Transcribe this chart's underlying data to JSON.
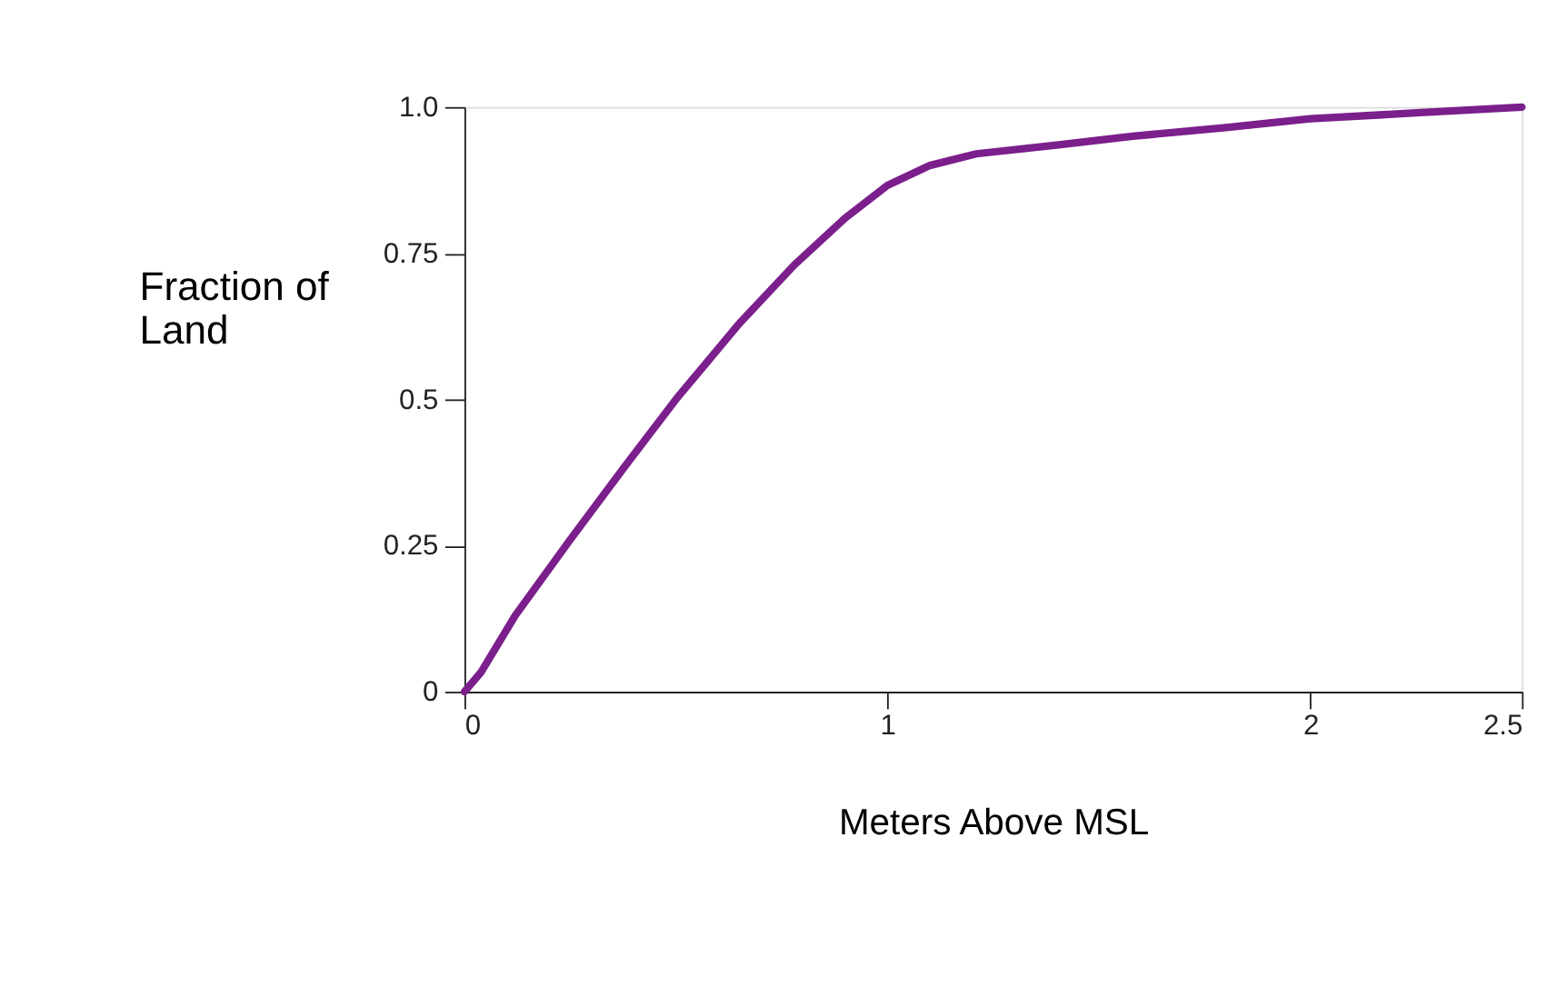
{
  "chart_data": {
    "type": "line",
    "xlabel": "Meters Above MSL",
    "ylabel": "Fraction of Land",
    "x": [
      0,
      0.04,
      0.12,
      0.25,
      0.38,
      0.5,
      0.65,
      0.78,
      0.9,
      1.0,
      1.1,
      1.21,
      1.4,
      1.58,
      1.8,
      2.0,
      2.25,
      2.5
    ],
    "series": [
      {
        "color": "#7b1f8c",
        "values": [
          0,
          0.034,
          0.13,
          0.26,
          0.386,
          0.5,
          0.63,
          0.73,
          0.81,
          0.866,
          0.9,
          0.92,
          0.935,
          0.95,
          0.965,
          0.98,
          0.99,
          1.0
        ]
      }
    ],
    "xlim": [
      0,
      2.5
    ],
    "xticks": [
      0,
      1,
      2,
      2.5
    ],
    "ylim": [
      0,
      1
    ],
    "yticks": [
      0,
      0.25,
      0.5,
      0.75,
      {
        "value": 1,
        "label": "1.0"
      }
    ],
    "grid": false,
    "marker": "none",
    "line_style": "solid"
  }
}
